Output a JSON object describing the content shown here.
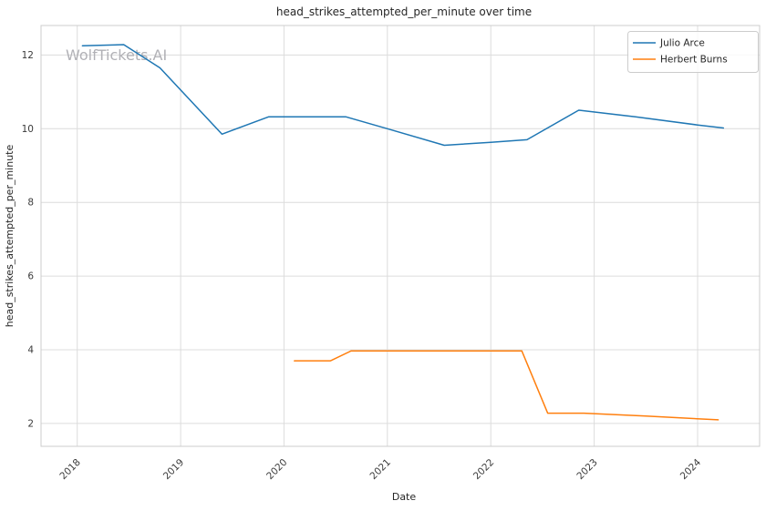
{
  "chart_data": {
    "type": "line",
    "title": "head_strikes_attempted_per_minute over time",
    "xlabel": "Date",
    "ylabel": "head_strikes_attempted_per_minute",
    "watermark": "WolfTickets.AI",
    "grid": true,
    "legend_position": "upper right",
    "xlim": [
      2017.65,
      2024.6
    ],
    "ylim": [
      1.38,
      12.8
    ],
    "x_ticks": [
      2018,
      2019,
      2020,
      2021,
      2022,
      2023,
      2024
    ],
    "y_ticks": [
      2,
      4,
      6,
      8,
      10,
      12
    ],
    "series": [
      {
        "name": "Julio Arce",
        "color": "#1f77b4",
        "x": [
          2018.05,
          2018.45,
          2018.8,
          2019.4,
          2019.85,
          2020.3,
          2020.6,
          2021.0,
          2021.55,
          2022.0,
          2022.35,
          2022.85,
          2023.4,
          2024.0,
          2024.25
        ],
        "y": [
          12.25,
          12.28,
          11.65,
          9.85,
          10.32,
          10.32,
          10.32,
          10.0,
          9.55,
          9.63,
          9.7,
          10.5,
          10.32,
          10.1,
          10.02
        ]
      },
      {
        "name": "Herbert Burns",
        "color": "#ff7f0e",
        "x": [
          2020.1,
          2020.45,
          2020.65,
          2021.2,
          2022.3,
          2022.55,
          2022.9,
          2023.5,
          2024.2
        ],
        "y": [
          3.7,
          3.7,
          3.97,
          3.97,
          3.97,
          2.28,
          2.28,
          2.2,
          2.1
        ]
      }
    ]
  }
}
